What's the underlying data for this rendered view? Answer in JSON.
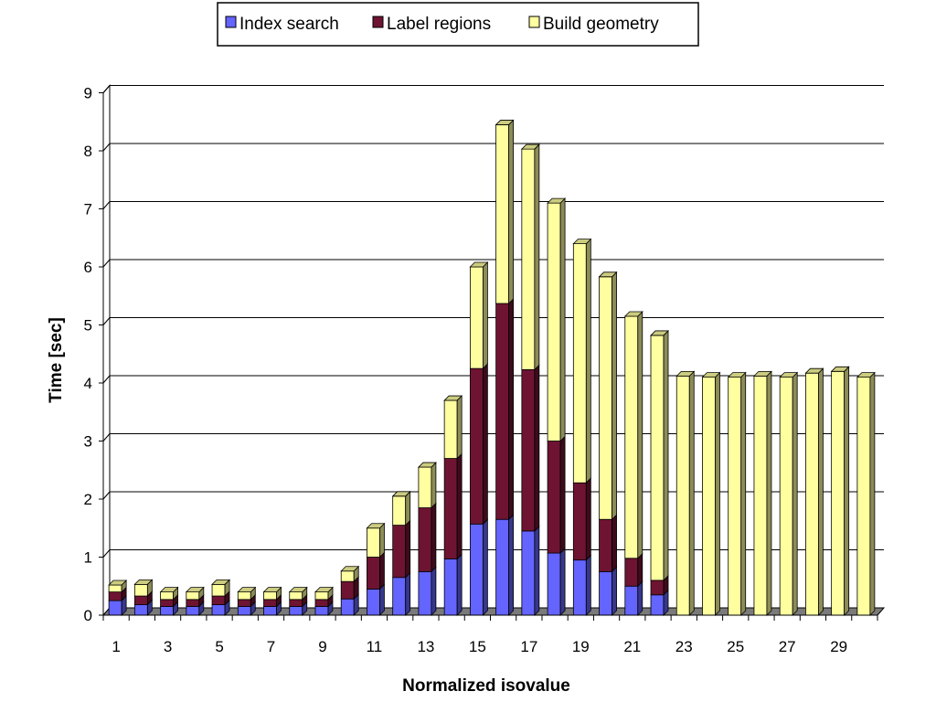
{
  "chart_data": {
    "type": "bar",
    "stacked": true,
    "style": "3d",
    "xlabel": "Normalized isovalue",
    "ylabel": "Time [sec]",
    "ylim": [
      0,
      9
    ],
    "yticks": [
      0,
      1,
      2,
      3,
      4,
      5,
      6,
      7,
      8,
      9
    ],
    "grid": true,
    "legend": "top-center",
    "categories": [
      "1",
      "2",
      "3",
      "4",
      "5",
      "6",
      "7",
      "8",
      "9",
      "10",
      "11",
      "12",
      "13",
      "14",
      "15",
      "16",
      "17",
      "18",
      "19",
      "20",
      "21",
      "22",
      "23",
      "24",
      "25",
      "26",
      "27",
      "28",
      "29",
      "30"
    ],
    "xtick_labels": [
      "1",
      "",
      "3",
      "",
      "5",
      "",
      "7",
      "",
      "9",
      "",
      "11",
      "",
      "13",
      "",
      "15",
      "",
      "17",
      "",
      "19",
      "",
      "21",
      "",
      "23",
      "",
      "25",
      "",
      "27",
      "",
      "29",
      ""
    ],
    "series": [
      {
        "name": "Index search",
        "color": "#6464ff",
        "values": [
          0.25,
          0.18,
          0.15,
          0.15,
          0.18,
          0.15,
          0.15,
          0.15,
          0.15,
          0.28,
          0.45,
          0.65,
          0.75,
          0.97,
          1.57,
          1.65,
          1.45,
          1.07,
          0.95,
          0.75,
          0.5,
          0.35,
          0,
          0,
          0,
          0,
          0,
          0,
          0,
          0
        ]
      },
      {
        "name": "Label regions",
        "color": "#6e1432",
        "values": [
          0.15,
          0.15,
          0.12,
          0.12,
          0.15,
          0.12,
          0.12,
          0.12,
          0.12,
          0.3,
          0.55,
          0.9,
          1.1,
          1.73,
          2.68,
          3.72,
          2.78,
          1.93,
          1.33,
          0.9,
          0.48,
          0.25,
          0,
          0,
          0,
          0,
          0,
          0,
          0,
          0
        ]
      },
      {
        "name": "Build geometry",
        "color": "#ffffa0",
        "values": [
          0.12,
          0.2,
          0.13,
          0.13,
          0.2,
          0.13,
          0.13,
          0.13,
          0.13,
          0.18,
          0.5,
          0.5,
          0.7,
          1.0,
          1.75,
          3.08,
          3.8,
          4.1,
          4.12,
          4.18,
          4.17,
          4.22,
          4.12,
          4.1,
          4.1,
          4.12,
          4.1,
          4.17,
          4.2,
          4.1
        ]
      }
    ]
  }
}
